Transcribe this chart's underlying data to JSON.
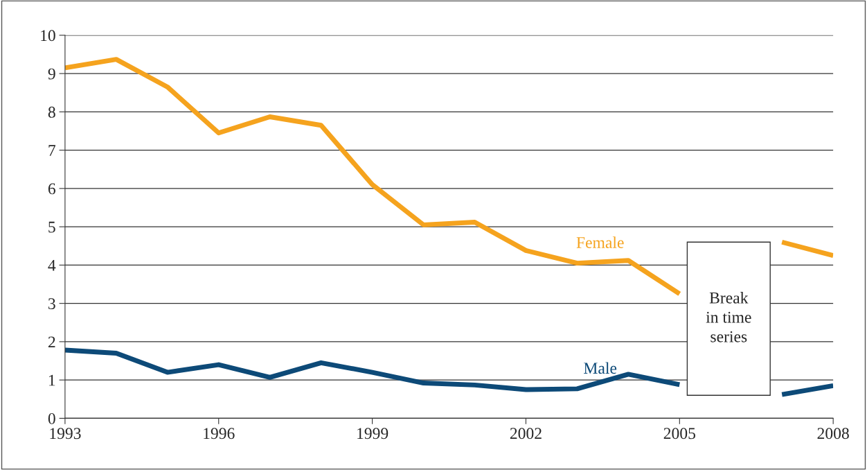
{
  "chart_data": {
    "type": "line",
    "x": [
      1993,
      1994,
      1995,
      1996,
      1997,
      1998,
      1999,
      2000,
      2001,
      2002,
      2003,
      2004,
      2005,
      2006,
      2007,
      2008
    ],
    "series": [
      {
        "name": "Female",
        "color": "#f5a31e",
        "values": [
          9.15,
          9.37,
          8.65,
          7.45,
          7.87,
          7.65,
          6.1,
          5.05,
          5.12,
          4.38,
          4.05,
          4.12,
          3.25,
          null,
          4.6,
          4.25
        ]
      },
      {
        "name": "Male",
        "color": "#0d4a78",
        "values": [
          1.78,
          1.7,
          1.2,
          1.4,
          1.07,
          1.45,
          1.2,
          0.92,
          0.87,
          0.75,
          0.77,
          1.15,
          0.88,
          null,
          0.62,
          0.85
        ]
      }
    ],
    "xlim": [
      1993,
      2008
    ],
    "xticks": [
      1993,
      1996,
      1999,
      2002,
      2005,
      2008
    ],
    "ylim": [
      0,
      10
    ],
    "yticks": [
      0,
      1,
      2,
      3,
      4,
      5,
      6,
      7,
      8,
      9,
      10
    ],
    "grid": "y",
    "legend": false,
    "marker": "none",
    "line_style": "solid",
    "annotations": [
      "Break\nin time\nseries"
    ]
  }
}
